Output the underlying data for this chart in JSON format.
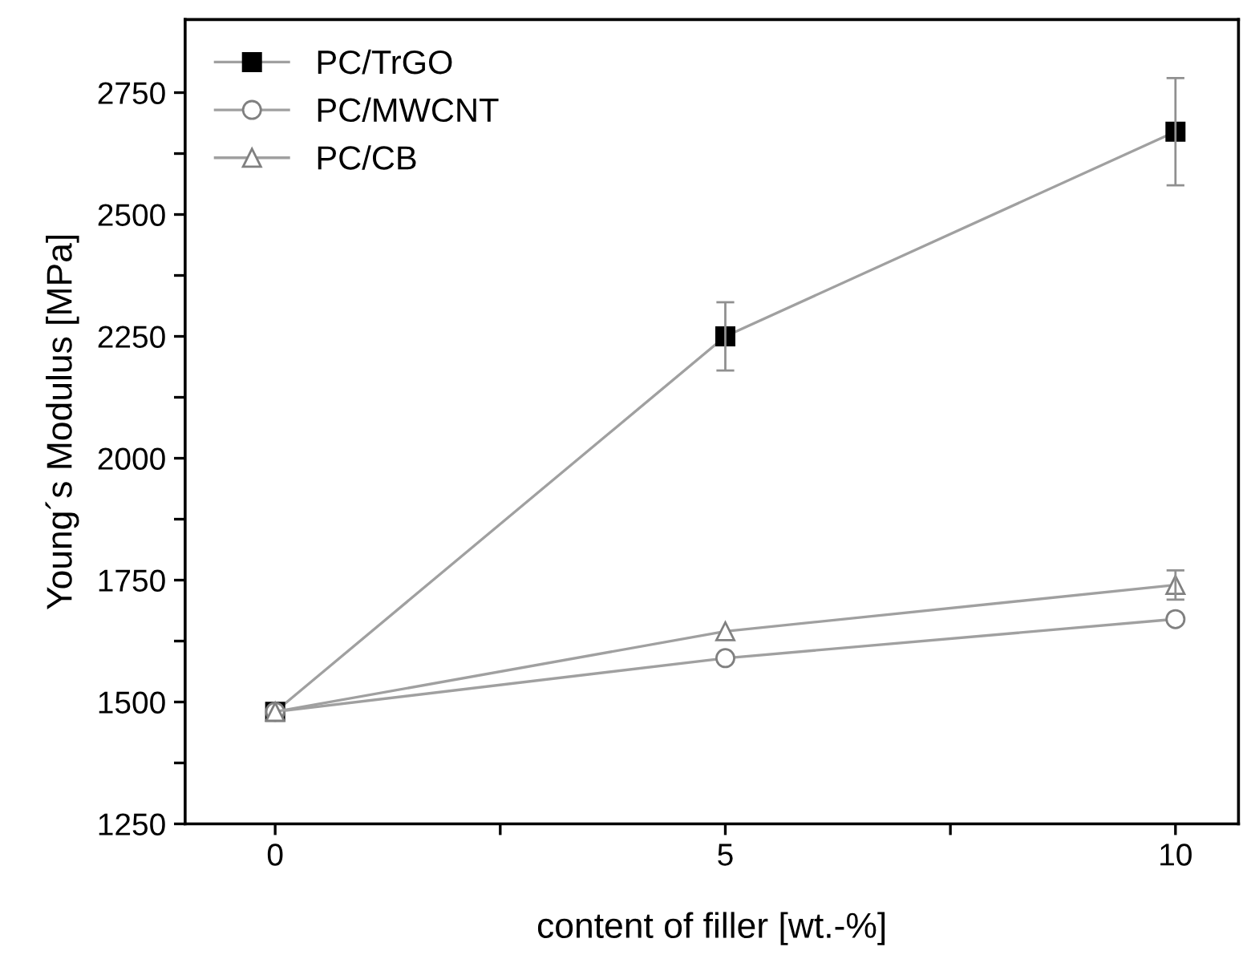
{
  "chart_data": {
    "type": "line",
    "xlabel": "content of filler [wt.-%]",
    "ylabel": "Young´s Modulus [MPa]",
    "x": [
      0,
      5,
      10
    ],
    "series": [
      {
        "name": "PC/TrGO",
        "color": "#000000",
        "marker": "square",
        "values": [
          1480,
          2250,
          2670
        ],
        "errors": [
          null,
          70,
          110
        ]
      },
      {
        "name": "PC/MWCNT",
        "color": "#808080",
        "marker": "circle",
        "values": [
          1480,
          1590,
          1670
        ]
      },
      {
        "name": "PC/CB",
        "color": "#808080",
        "marker": "triangle",
        "values": [
          1480,
          1645,
          1740
        ],
        "errors": [
          null,
          null,
          30
        ]
      }
    ],
    "xlim": [
      -1,
      10.7
    ],
    "ylim": [
      1250,
      2900
    ],
    "xticks": [
      0,
      {
        "value": 2.5,
        "label": null
      },
      5,
      {
        "value": 7.5,
        "label": null
      },
      10
    ],
    "yticks": [
      1250,
      {
        "value": 1375,
        "label": null
      },
      1500,
      {
        "value": 1625,
        "label": null
      },
      1750,
      {
        "value": 1875,
        "label": null
      },
      2000,
      {
        "value": 2125,
        "label": null
      },
      2250,
      {
        "value": 2375,
        "label": null
      },
      2500,
      {
        "value": 2625,
        "label": null
      },
      2750
    ],
    "legend": "top left",
    "grid": false,
    "line_style": "solid"
  }
}
